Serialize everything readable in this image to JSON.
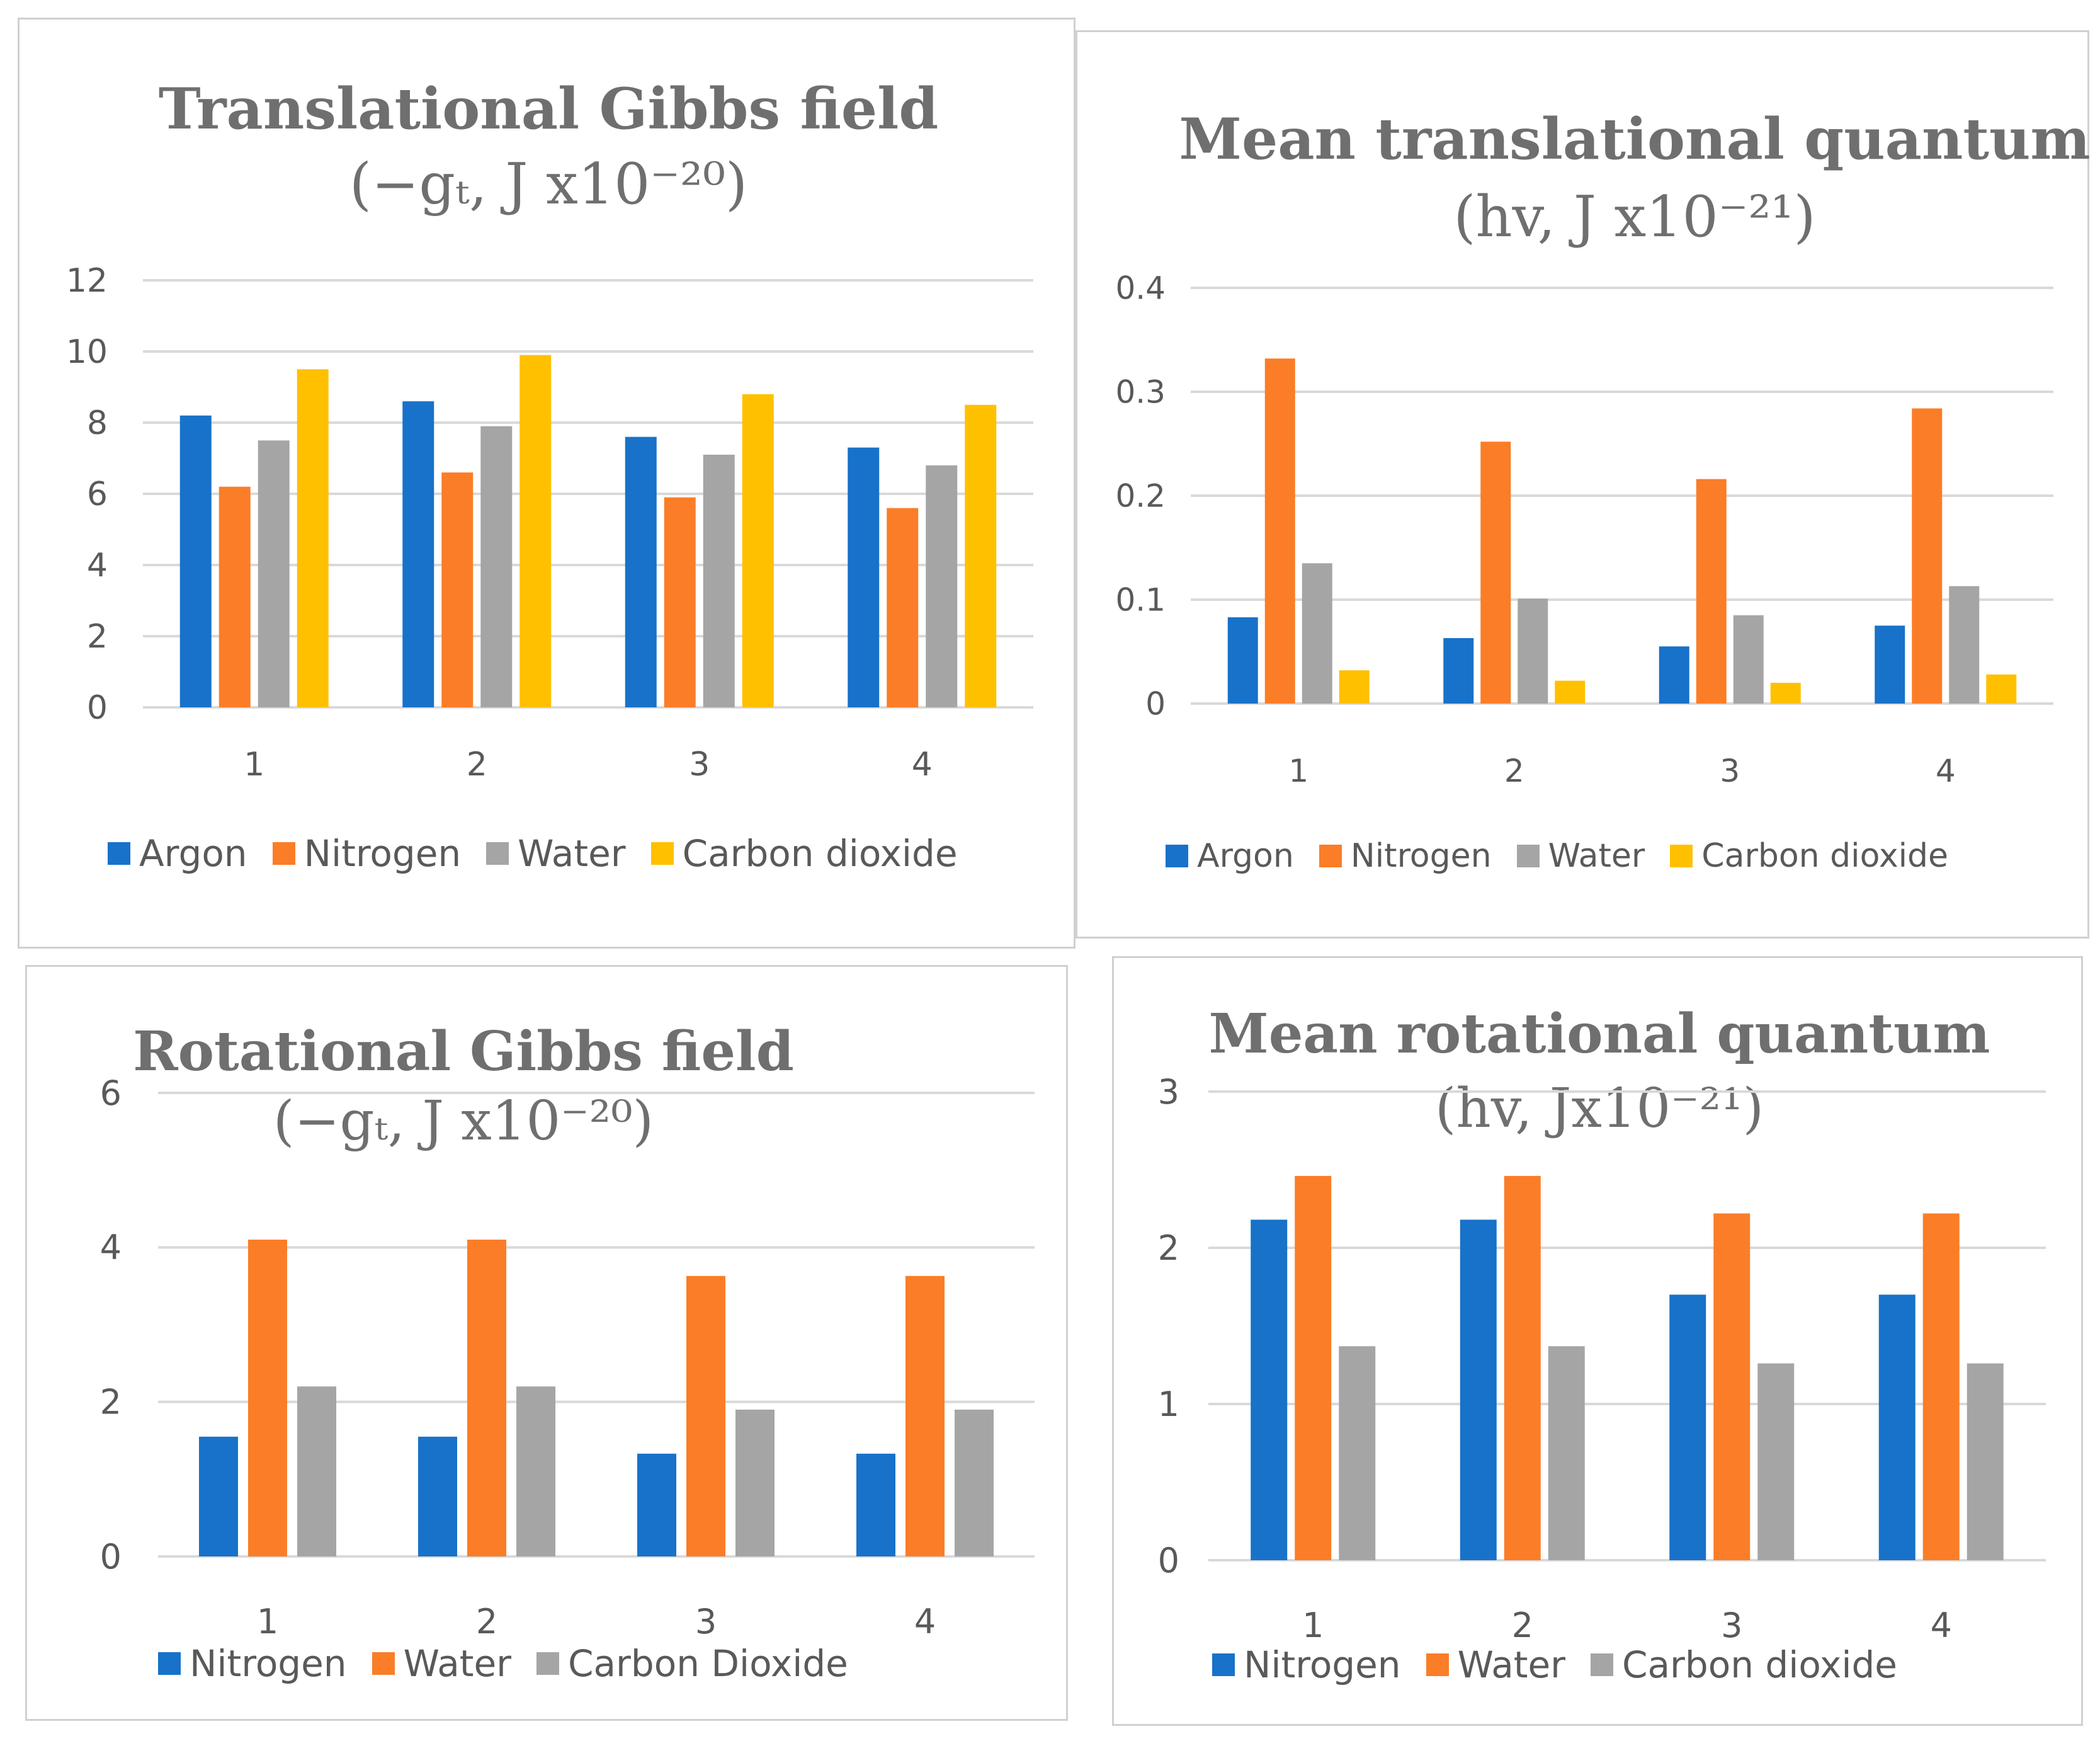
{
  "colors": {
    "blue": "#1872c9",
    "orange": "#fb7d27",
    "gray": "#a5a5a5",
    "gold": "#ffc000",
    "grid": "#d9d9d9",
    "axis_text": "#595959",
    "title_text": "#6f6f6f"
  },
  "chart_data": [
    {
      "type": "bar",
      "title": "Translational Gibbs field",
      "subtitle": "(−gₜ, J x10⁻²⁰)",
      "categories": [
        "1",
        "2",
        "3",
        "4"
      ],
      "series": [
        {
          "name": "Argon",
          "color": "#1872c9",
          "values": [
            8.2,
            8.6,
            7.6,
            7.3
          ]
        },
        {
          "name": "Nitrogen",
          "color": "#fb7d27",
          "values": [
            6.2,
            6.6,
            5.9,
            5.6
          ]
        },
        {
          "name": "Water",
          "color": "#a5a5a5",
          "values": [
            7.5,
            7.9,
            7.1,
            6.8
          ]
        },
        {
          "name": "Carbon dioxide",
          "color": "#ffc000",
          "values": [
            9.5,
            9.9,
            8.8,
            8.5
          ]
        }
      ],
      "ylim": [
        0,
        12
      ],
      "yticks": [
        "0",
        "2",
        "4",
        "6",
        "8",
        "10",
        "12"
      ],
      "grid": true,
      "legend": "bottom"
    },
    {
      "type": "bar",
      "title": "Mean translational quantum",
      "subtitle": "(hv, J x10⁻²¹)",
      "categories": [
        "1",
        "2",
        "3",
        "4"
      ],
      "series": [
        {
          "name": "Argon",
          "color": "#1872c9",
          "values": [
            0.083,
            0.063,
            0.055,
            0.075
          ]
        },
        {
          "name": "Nitrogen",
          "color": "#fb7d27",
          "values": [
            0.332,
            0.252,
            0.216,
            0.284
          ]
        },
        {
          "name": "Water",
          "color": "#a5a5a5",
          "values": [
            0.135,
            0.101,
            0.085,
            0.113
          ]
        },
        {
          "name": "Carbon dioxide",
          "color": "#ffc000",
          "values": [
            0.032,
            0.022,
            0.02,
            0.028
          ]
        }
      ],
      "ylim": [
        0,
        0.4
      ],
      "yticks": [
        "0",
        "0.1",
        "0.2",
        "0.3",
        "0.4"
      ],
      "grid": true,
      "legend": "bottom"
    },
    {
      "type": "bar",
      "title": "Rotational Gibbs field",
      "subtitle": "(−gₜ, J x10⁻²⁰)",
      "categories": [
        "1",
        "2",
        "3",
        "4"
      ],
      "series": [
        {
          "name": "Nitrogen",
          "color": "#1872c9",
          "values": [
            1.55,
            1.55,
            1.33,
            1.33
          ]
        },
        {
          "name": "Water",
          "color": "#fb7d27",
          "values": [
            4.1,
            4.1,
            3.63,
            3.63
          ]
        },
        {
          "name": "Carbon Dioxide",
          "color": "#a5a5a5",
          "values": [
            2.2,
            2.2,
            1.9,
            1.9
          ]
        }
      ],
      "ylim": [
        0,
        6
      ],
      "yticks": [
        "0",
        "2",
        "4",
        "6"
      ],
      "grid": true,
      "legend": "bottom"
    },
    {
      "type": "bar",
      "title": "Mean rotational quantum",
      "subtitle": "(hv, Jx10⁻²¹)",
      "categories": [
        "1",
        "2",
        "3",
        "4"
      ],
      "series": [
        {
          "name": "Nitrogen",
          "color": "#1872c9",
          "values": [
            2.18,
            2.18,
            1.7,
            1.7
          ]
        },
        {
          "name": "Water",
          "color": "#fb7d27",
          "values": [
            2.46,
            2.46,
            2.22,
            2.22
          ]
        },
        {
          "name": "Carbon dioxide",
          "color": "#a5a5a5",
          "values": [
            1.37,
            1.37,
            1.26,
            1.26
          ]
        }
      ],
      "ylim": [
        0,
        3
      ],
      "yticks": [
        "0",
        "1",
        "2",
        "3"
      ],
      "grid": true,
      "legend": "bottom"
    }
  ]
}
